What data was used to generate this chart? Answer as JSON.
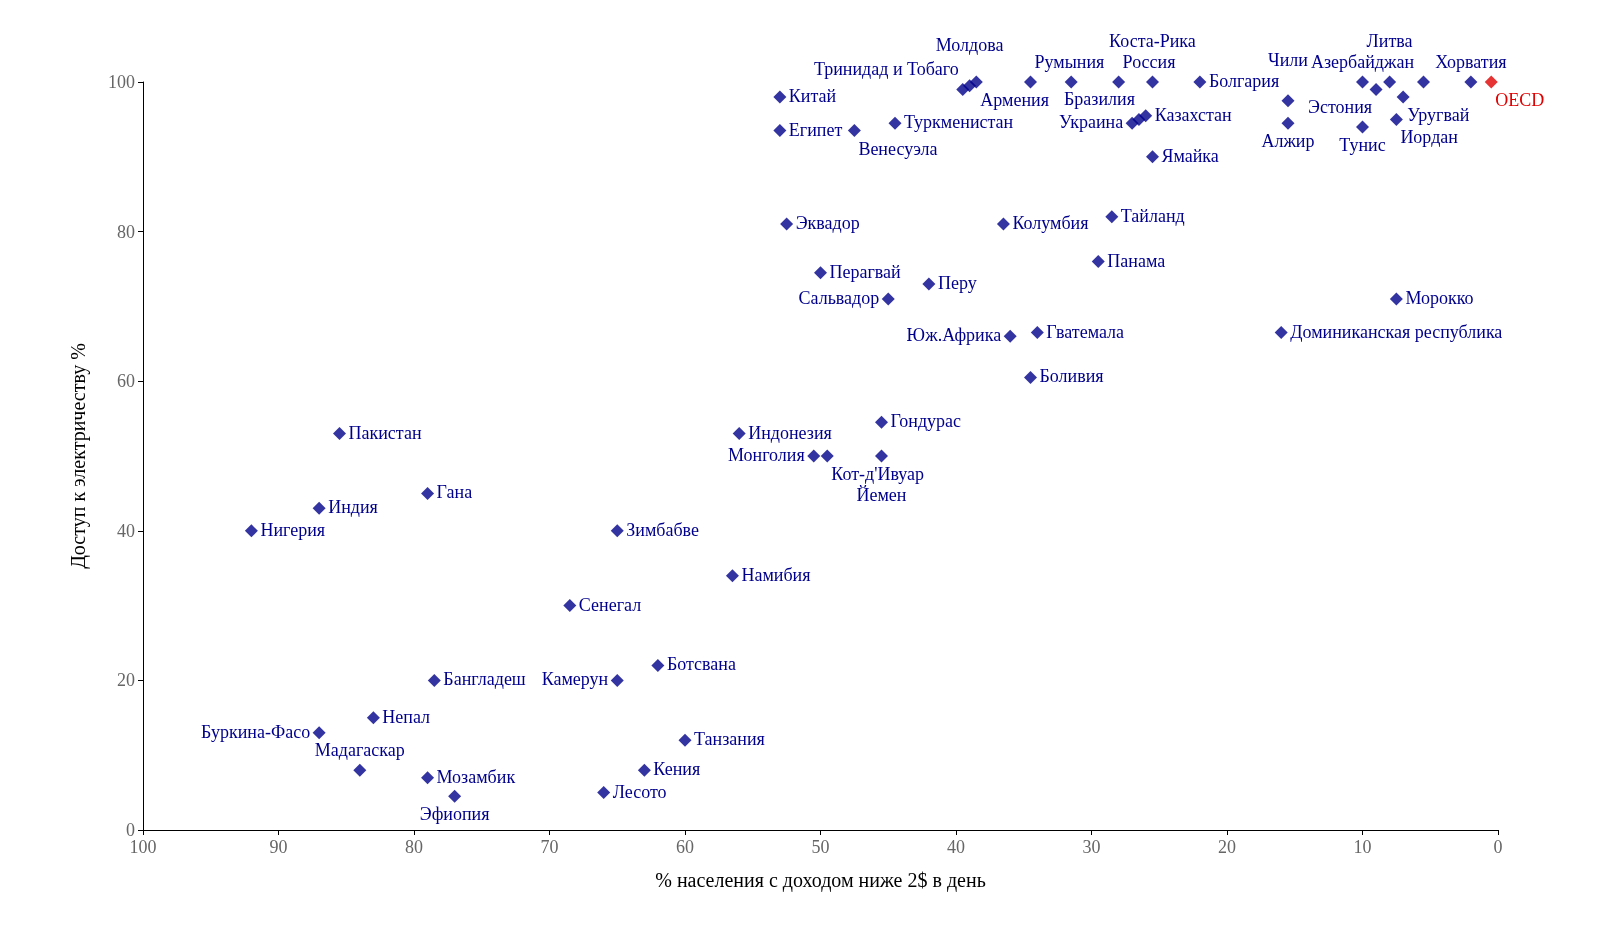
{
  "chart_data": {
    "type": "scatter",
    "xlabel": "% населения с доходом ниже 2$ в день",
    "ylabel": "Доступ к электричеству %",
    "x": [
      92,
      87,
      85.5,
      79,
      87,
      83,
      78.5,
      84,
      79,
      77,
      65,
      68.5,
      56.5,
      62,
      65,
      60,
      63,
      66,
      56,
      50.5,
      49.5,
      45.5,
      45.5,
      45,
      50,
      42,
      52.5,
      36.5,
      36,
      34,
      34.5,
      28.5,
      29.5,
      27,
      26.5,
      26,
      25.5,
      53,
      53,
      47.5,
      44.5,
      39.5,
      39,
      38.5,
      34.5,
      31.5,
      28,
      25.5,
      22,
      10,
      9,
      8,
      5.5,
      2,
      15.5,
      15.5,
      7,
      10,
      7.5,
      16,
      7.5,
      0.5
    ],
    "values": [
      40,
      43,
      53,
      45,
      13,
      15,
      20,
      8,
      7,
      4.5,
      40,
      30,
      34,
      22,
      20,
      12,
      8,
      5,
      53,
      50,
      50,
      54.5,
      50,
      71,
      74.5,
      73,
      81,
      81,
      66,
      66.5,
      60.5,
      82,
      76,
      94.5,
      95,
      95.5,
      90,
      93.5,
      98,
      93.5,
      94.5,
      99,
      99.5,
      100,
      100,
      100,
      100,
      100,
      100,
      100,
      99,
      100,
      100,
      100,
      97.5,
      94.5,
      98,
      94,
      95,
      66.5,
      71,
      100
    ],
    "colors": [
      "#00008b",
      "#00008b",
      "#00008b",
      "#00008b",
      "#00008b",
      "#00008b",
      "#00008b",
      "#00008b",
      "#00008b",
      "#00008b",
      "#00008b",
      "#00008b",
      "#00008b",
      "#00008b",
      "#00008b",
      "#00008b",
      "#00008b",
      "#00008b",
      "#00008b",
      "#00008b",
      "#00008b",
      "#00008b",
      "#00008b",
      "#00008b",
      "#00008b",
      "#00008b",
      "#00008b",
      "#00008b",
      "#00008b",
      "#00008b",
      "#00008b",
      "#00008b",
      "#00008b",
      "#00008b",
      "#00008b",
      "#00008b",
      "#00008b",
      "#00008b",
      "#00008b",
      "#00008b",
      "#00008b",
      "#00008b",
      "#00008b",
      "#00008b",
      "#00008b",
      "#00008b",
      "#00008b",
      "#00008b",
      "#00008b",
      "#00008b",
      "#00008b",
      "#00008b",
      "#00008b",
      "#00008b",
      "#00008b",
      "#00008b",
      "#00008b",
      "#00008b",
      "#00008b",
      "#00008b",
      "#00008b",
      "#e00000"
    ],
    "annotations": [
      {
        "text": "Нигерия",
        "x": 92,
        "y": 40
      },
      {
        "text": "Индия",
        "x": 87,
        "y": 43
      },
      {
        "text": "Пакистан",
        "x": 85.5,
        "y": 53
      },
      {
        "text": "Гана",
        "x": 79,
        "y": 45
      },
      {
        "text": "Буркина-Фасо",
        "x": 87,
        "y": 13
      },
      {
        "text": "Непал",
        "x": 83,
        "y": 15
      },
      {
        "text": "Бангладеш",
        "x": 78.5,
        "y": 20
      },
      {
        "text": "Мадагаскар",
        "x": 84,
        "y": 8
      },
      {
        "text": "Мозамбик",
        "x": 79,
        "y": 7
      },
      {
        "text": "Эфиопия",
        "x": 77,
        "y": 4.5
      },
      {
        "text": "Зимбабве",
        "x": 65,
        "y": 40
      },
      {
        "text": "Сенегал",
        "x": 68.5,
        "y": 30
      },
      {
        "text": "Намибия",
        "x": 56.5,
        "y": 34
      },
      {
        "text": "Ботсвана",
        "x": 62,
        "y": 22
      },
      {
        "text": "Камерун",
        "x": 65,
        "y": 20
      },
      {
        "text": "Танзания",
        "x": 60,
        "y": 12
      },
      {
        "text": "Кения",
        "x": 63,
        "y": 8
      },
      {
        "text": "Лесото",
        "x": 66,
        "y": 5
      },
      {
        "text": "Индонезия",
        "x": 56,
        "y": 53
      },
      {
        "text": "Монголия",
        "x": 50.5,
        "y": 50
      },
      {
        "text": "Кот-д'Ивуар",
        "x": 49.5,
        "y": 50
      },
      {
        "text": "Гондурас",
        "x": 45.5,
        "y": 54.5
      },
      {
        "text": "Йемен",
        "x": 45.5,
        "y": 50
      },
      {
        "text": "Сальвадор",
        "x": 45,
        "y": 71
      },
      {
        "text": "Перагвай",
        "x": 50,
        "y": 74.5
      },
      {
        "text": "Перу",
        "x": 42,
        "y": 73
      },
      {
        "text": "Эквадор",
        "x": 52.5,
        "y": 81
      },
      {
        "text": "Колумбия",
        "x": 36.5,
        "y": 81
      },
      {
        "text": "Юж.Африка",
        "x": 36,
        "y": 66
      },
      {
        "text": "Гватемала",
        "x": 34,
        "y": 66.5
      },
      {
        "text": "Боливия",
        "x": 34.5,
        "y": 60.5
      },
      {
        "text": "Тайланд",
        "x": 28.5,
        "y": 82
      },
      {
        "text": "Панама",
        "x": 29.5,
        "y": 76
      },
      {
        "text": "Украина",
        "x": 27,
        "y": 94.5
      },
      {
        "text": "Бразилия",
        "x": 26.5,
        "y": 95
      },
      {
        "text": "Казахстан",
        "x": 26,
        "y": 95.5
      },
      {
        "text": "Ямайка",
        "x": 25.5,
        "y": 90
      },
      {
        "text": "Египет",
        "x": 53,
        "y": 93.5
      },
      {
        "text": "Китай",
        "x": 53,
        "y": 98
      },
      {
        "text": "Венесуэла",
        "x": 47.5,
        "y": 93.5
      },
      {
        "text": "Туркменистан",
        "x": 44.5,
        "y": 94.5
      },
      {
        "text": "Тринидад и Тобаго",
        "x": 39.5,
        "y": 99
      },
      {
        "text": "Молдова",
        "x": 39,
        "y": 99.5
      },
      {
        "text": "Армения",
        "x": 38.5,
        "y": 100
      },
      {
        "text": "Румыния",
        "x": 34.5,
        "y": 100
      },
      {
        "text": "Россия",
        "x": 28,
        "y": 100
      },
      {
        "text": "Коста-Рика",
        "x": 25.5,
        "y": 100
      },
      {
        "text": "Болгария",
        "x": 22,
        "y": 100
      },
      {
        "text": "Азербайджан",
        "x": 10,
        "y": 100
      },
      {
        "text": "Эстония",
        "x": 9,
        "y": 99
      },
      {
        "text": "Литва",
        "x": 8,
        "y": 100
      },
      {
        "text": "Хорватия",
        "x": 2,
        "y": 100
      },
      {
        "text": "Чили",
        "x": 15.5,
        "y": 97.5
      },
      {
        "text": "Алжир",
        "x": 15.5,
        "y": 94.5
      },
      {
        "text": "Уругвай",
        "x": 7,
        "y": 98
      },
      {
        "text": "Тунис",
        "x": 10,
        "y": 94
      },
      {
        "text": "Иордан",
        "x": 7.5,
        "y": 95
      },
      {
        "text": "Доминиканская республика",
        "x": 16,
        "y": 66.5
      },
      {
        "text": "Морокко",
        "x": 7.5,
        "y": 71
      },
      {
        "text": "OECD",
        "x": 0.5,
        "y": 100
      }
    ],
    "xlim": [
      100,
      0
    ],
    "xticks": [
      100,
      90,
      80,
      70,
      60,
      50,
      40,
      30,
      20,
      10,
      0
    ],
    "ylim": [
      0,
      100
    ],
    "yticks": [
      0,
      20,
      40,
      60,
      80,
      100
    ],
    "grid": false,
    "marker": "diamond"
  }
}
